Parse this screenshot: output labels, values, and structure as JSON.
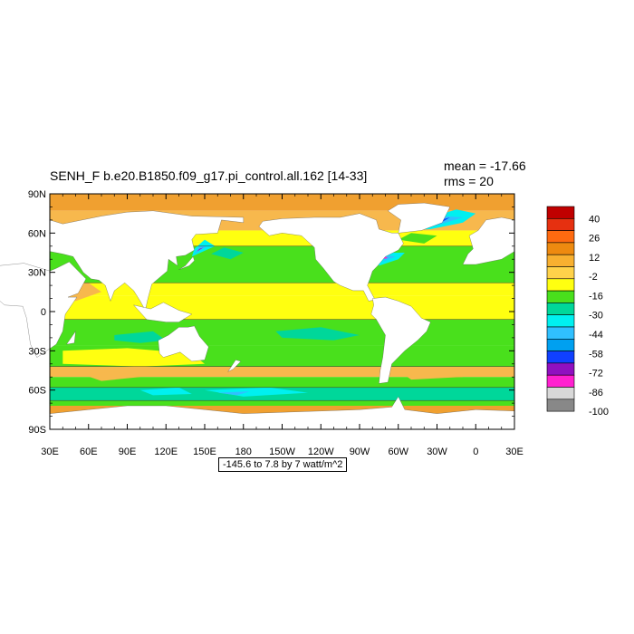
{
  "title": "SENH_F b.e20.B1850.f09_g17.pi_control.all.162 [14-33]",
  "stats": {
    "mean": "mean = -17.66",
    "rms": "rms = 20"
  },
  "info": "-145.6 to 7.8 by 7 watt/m^2",
  "y_ticks": [
    {
      "label": "90N",
      "lat": 90
    },
    {
      "label": "60N",
      "lat": 60
    },
    {
      "label": "30N",
      "lat": 30
    },
    {
      "label": "0",
      "lat": 0
    },
    {
      "label": "30S",
      "lat": -30
    },
    {
      "label": "60S",
      "lat": -60
    },
    {
      "label": "90S",
      "lat": -90
    }
  ],
  "x_ticks": [
    {
      "label": "30E",
      "lon": 30
    },
    {
      "label": "60E",
      "lon": 60
    },
    {
      "label": "90E",
      "lon": 90
    },
    {
      "label": "120E",
      "lon": 120
    },
    {
      "label": "150E",
      "lon": 150
    },
    {
      "label": "180",
      "lon": 180
    },
    {
      "label": "150W",
      "lon": 210
    },
    {
      "label": "120W",
      "lon": 240
    },
    {
      "label": "90W",
      "lon": 270
    },
    {
      "label": "60W",
      "lon": 300
    },
    {
      "label": "30W",
      "lon": 330
    },
    {
      "label": "0",
      "lon": 360
    },
    {
      "label": "30E",
      "lon": 390
    }
  ],
  "colorbar": {
    "labels": [
      "40",
      "26",
      "12",
      "-2",
      "-16",
      "-30",
      "-44",
      "-58",
      "-72",
      "-86",
      "-100"
    ],
    "colors": [
      "#c00000",
      "#e63010",
      "#ff6a10",
      "#ee8a10",
      "#f8b030",
      "#ffd24a",
      "#ffff10",
      "#49e01c",
      "#00d79a",
      "#00f0f0",
      "#30c0ff",
      "#00a0f0",
      "#1040ff",
      "#9010c0",
      "#ff20d0",
      "#d8d8d8",
      "#888888"
    ]
  },
  "palette": {
    "land": "#ffffff",
    "arctic": "#f0a030",
    "subpolar": "#f7b84d",
    "yellow": "#ffff10",
    "green": "#49e01c",
    "teal": "#00d79a",
    "cyan": "#00f0f0",
    "lightblue": "#30c0ff",
    "blue": "#1040ff",
    "purple": "#9010c0",
    "magenta": "#ff20d0"
  }
}
